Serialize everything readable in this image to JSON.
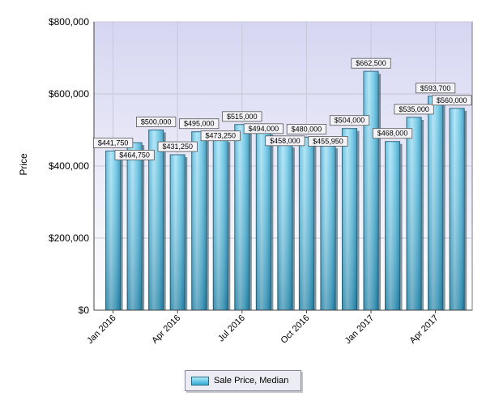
{
  "chart_data": {
    "type": "bar",
    "ylabel": "Price",
    "ylim": [
      0,
      800000
    ],
    "yticks": [
      "$0",
      "$200,000",
      "$400,000",
      "$600,000",
      "$800,000"
    ],
    "ytick_values": [
      0,
      200000,
      400000,
      600000,
      800000
    ],
    "x_tick_labels": [
      "Jan 2016",
      "Apr 2016",
      "Jul 2016",
      "Oct 2016",
      "Jan 2017",
      "Apr 2017"
    ],
    "x_tick_indices": [
      0,
      3,
      6,
      9,
      12,
      15
    ],
    "categories": [
      "Jan 2016",
      "Feb 2016",
      "Mar 2016",
      "Apr 2016",
      "May 2016",
      "Jun 2016",
      "Jul 2016",
      "Aug 2016",
      "Sep 2016",
      "Oct 2016",
      "Nov 2016",
      "Dec 2016",
      "Jan 2017",
      "Feb 2017",
      "Mar 2017",
      "Apr 2017",
      "May 2017"
    ],
    "series": [
      {
        "name": "Sale Price, Median",
        "values": [
          441750,
          464750,
          500000,
          431250,
          495000,
          473250,
          515000,
          494000,
          458000,
          480000,
          455950,
          504000,
          662500,
          468000,
          535000,
          593700,
          560000
        ],
        "labels": [
          "$441,750",
          "$464,750",
          "$500,000",
          "$431,250",
          "$495,000",
          "$473,250",
          "$515,000",
          "$494,000",
          "$458,000",
          "$480,000",
          "$455,950",
          "$504,000",
          "$662,500",
          "$468,000",
          "$535,000",
          "$593,700",
          "$560,000"
        ]
      }
    ],
    "grid": true,
    "legend_position": "bottom-center",
    "colors": {
      "bar_light": "#b9e8f7",
      "bar_mid": "#5ec4e6",
      "bar_dark": "#2f8fb4",
      "bar_border": "#1f5f78",
      "plot_bg_top": "#d8d8f4",
      "plot_bg_bottom": "#ffffff",
      "grid": "#c8c8d8"
    }
  }
}
